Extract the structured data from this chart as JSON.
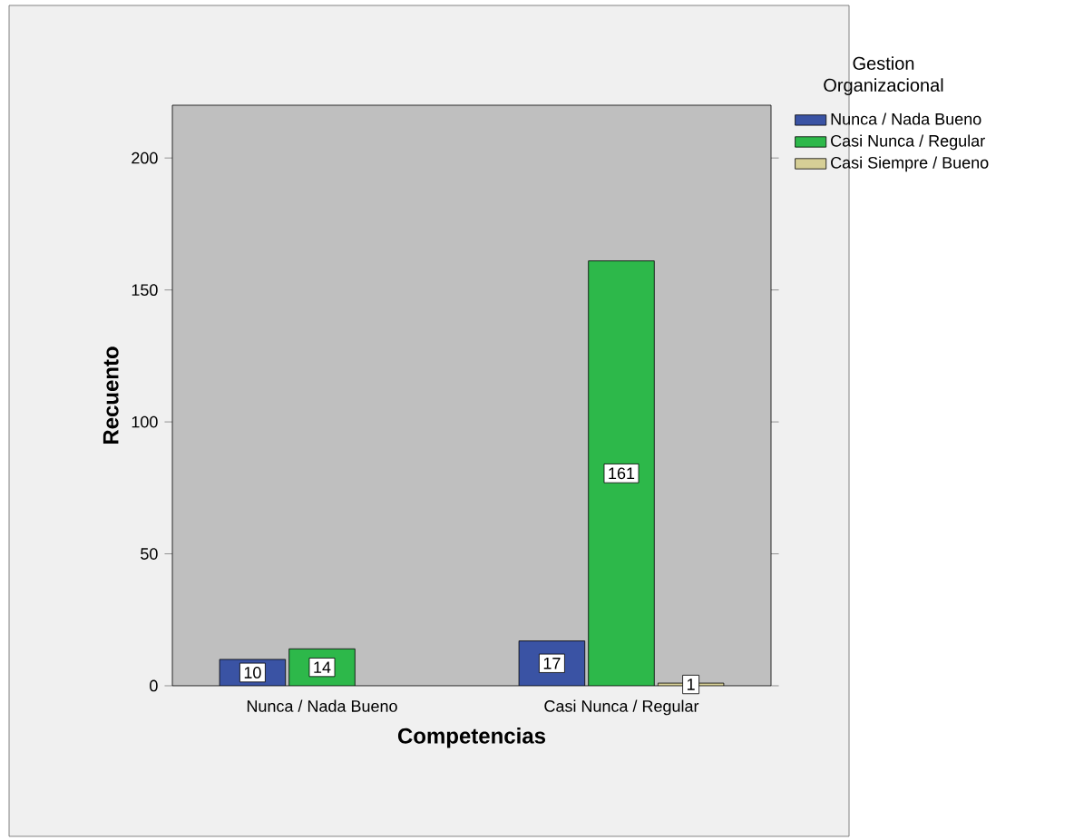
{
  "chart_data": {
    "type": "bar",
    "xlabel": "Competencias",
    "ylabel": "Recuento",
    "legend_title": "Gestion Organizacional",
    "categories": [
      "Nunca / Nada Bueno",
      "Casi Nunca / Regular"
    ],
    "series": [
      {
        "name": "Nunca / Nada Bueno",
        "color": "#3a53a4",
        "values": [
          10,
          17
        ]
      },
      {
        "name": "Casi Nunca / Regular",
        "color": "#2db84a",
        "values": [
          14,
          161
        ]
      },
      {
        "name": "Casi Siempre / Bueno",
        "color": "#d6cf96",
        "values": [
          null,
          1
        ]
      }
    ],
    "ylim": [
      0,
      220
    ],
    "yticks": [
      0,
      50,
      100,
      150,
      200
    ],
    "data_labels": true,
    "legend": "right",
    "grid": false
  }
}
